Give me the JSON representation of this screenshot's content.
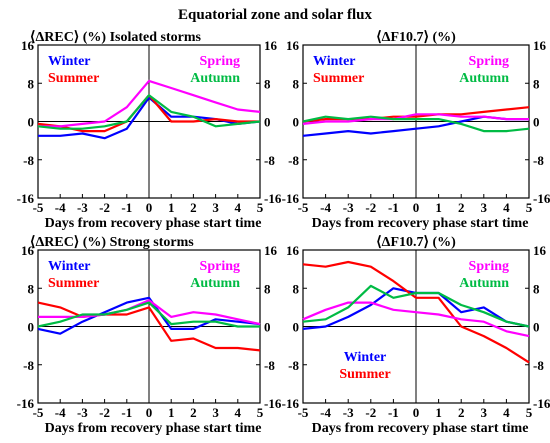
{
  "figure": {
    "title": "Equatorial zone and solar flux"
  },
  "colors": {
    "Winter": "#0000ff",
    "Summer": "#ff0000",
    "Spring": "#ff00ff",
    "Autumn": "#00bb44",
    "axis": "#000000"
  },
  "chart_data": [
    {
      "type": "line",
      "title": "⟨ΔREC⟩ (%) Isolated storms",
      "xlabel": "Days from recovery phase start time",
      "ylabel": "",
      "xlim": [
        -5,
        5
      ],
      "ylim": [
        -16,
        16
      ],
      "xticks": [
        -5,
        -4,
        -3,
        -2,
        -1,
        0,
        1,
        2,
        3,
        4,
        5
      ],
      "yticks": [
        -16,
        -8,
        0,
        8,
        16
      ],
      "legend": [
        {
          "label": "Winter",
          "color": "#0000ff",
          "placement": "top-left",
          "row": 1
        },
        {
          "label": "Summer",
          "color": "#ff0000",
          "placement": "top-left",
          "row": 2
        },
        {
          "label": "Spring",
          "color": "#ff00ff",
          "placement": "top-right",
          "row": 1
        },
        {
          "label": "Autumn",
          "color": "#00bb44",
          "placement": "top-right",
          "row": 2
        }
      ],
      "x": [
        -5,
        -4,
        -3,
        -2,
        -1,
        0,
        1,
        2,
        3,
        4,
        5
      ],
      "series": [
        {
          "name": "Winter",
          "color": "#0000ff",
          "values": [
            -3,
            -3,
            -2.5,
            -3.5,
            -1.5,
            5,
            1,
            1,
            0.5,
            -0.5,
            0
          ]
        },
        {
          "name": "Summer",
          "color": "#ff0000",
          "values": [
            -0.5,
            -1,
            -2,
            -2,
            0,
            5.5,
            0,
            0,
            0.5,
            0,
            0
          ]
        },
        {
          "name": "Spring",
          "color": "#ff00ff",
          "values": [
            -1,
            -1,
            -0.5,
            0,
            3,
            8.5,
            7,
            5.5,
            4,
            2.5,
            2
          ]
        },
        {
          "name": "Autumn",
          "color": "#00bb44",
          "values": [
            -1,
            -1.5,
            -1.5,
            -1,
            0,
            5.5,
            2,
            1,
            -1,
            -0.5,
            0
          ]
        }
      ]
    },
    {
      "type": "line",
      "title": "⟨ΔF10.7⟩ (%)",
      "xlabel": "Days from recovery phase start time",
      "ylabel": "",
      "xlim": [
        -5,
        5
      ],
      "ylim": [
        -16,
        16
      ],
      "xticks": [
        -5,
        -4,
        -3,
        -2,
        -1,
        0,
        1,
        2,
        3,
        4,
        5
      ],
      "yticks": [
        -16,
        -8,
        0,
        8,
        16
      ],
      "legend": [
        {
          "label": "Winter",
          "color": "#0000ff",
          "placement": "top-left",
          "row": 1
        },
        {
          "label": "Summer",
          "color": "#ff0000",
          "placement": "top-left",
          "row": 2
        },
        {
          "label": "Spring",
          "color": "#ff00ff",
          "placement": "top-right",
          "row": 1
        },
        {
          "label": "Autumn",
          "color": "#00bb44",
          "placement": "top-right",
          "row": 2
        }
      ],
      "x": [
        -5,
        -4,
        -3,
        -2,
        -1,
        0,
        1,
        2,
        3,
        4,
        5
      ],
      "series": [
        {
          "name": "Winter",
          "color": "#0000ff",
          "values": [
            -3,
            -2.5,
            -2,
            -2.5,
            -2,
            -1.5,
            -1,
            0,
            1,
            0.5,
            0.5
          ]
        },
        {
          "name": "Summer",
          "color": "#ff0000",
          "values": [
            0,
            0.5,
            0.5,
            0.5,
            1,
            1,
            1.5,
            1.5,
            2,
            2.5,
            3
          ]
        },
        {
          "name": "Spring",
          "color": "#ff00ff",
          "values": [
            -0.5,
            0,
            0,
            0.5,
            0.5,
            1.5,
            1.5,
            1,
            1,
            0.5,
            0.5
          ]
        },
        {
          "name": "Autumn",
          "color": "#00bb44",
          "values": [
            0,
            1,
            0.5,
            1,
            0.5,
            0.5,
            0.5,
            -0.5,
            -2,
            -2,
            -1.5
          ]
        }
      ]
    },
    {
      "type": "line",
      "title": "⟨ΔREC⟩ (%) Strong storms",
      "xlabel": "Days from recovery phase start time",
      "ylabel": "",
      "xlim": [
        -5,
        5
      ],
      "ylim": [
        -16,
        16
      ],
      "xticks": [
        -5,
        -4,
        -3,
        -2,
        -1,
        0,
        1,
        2,
        3,
        4,
        5
      ],
      "yticks": [
        -16,
        -8,
        0,
        8,
        16
      ],
      "legend": [
        {
          "label": "Winter",
          "color": "#0000ff",
          "placement": "top-left",
          "row": 1
        },
        {
          "label": "Summer",
          "color": "#ff0000",
          "placement": "top-left",
          "row": 2
        },
        {
          "label": "Spring",
          "color": "#ff00ff",
          "placement": "top-right",
          "row": 1
        },
        {
          "label": "Autumn",
          "color": "#00bb44",
          "placement": "top-right",
          "row": 2
        }
      ],
      "x": [
        -5,
        -4,
        -3,
        -2,
        -1,
        0,
        1,
        2,
        3,
        4,
        5
      ],
      "series": [
        {
          "name": "Winter",
          "color": "#0000ff",
          "values": [
            -0.5,
            -1.5,
            1,
            3,
            5,
            6,
            -0.5,
            -0.5,
            1.5,
            1,
            0.5
          ]
        },
        {
          "name": "Summer",
          "color": "#ff0000",
          "values": [
            5,
            4,
            2,
            2.5,
            2.5,
            4,
            -3,
            -2.5,
            -4.5,
            -4.5,
            -5
          ]
        },
        {
          "name": "Spring",
          "color": "#ff00ff",
          "values": [
            2,
            2,
            2,
            2.5,
            3.5,
            5.5,
            2,
            3,
            2.5,
            1.5,
            0.5
          ]
        },
        {
          "name": "Autumn",
          "color": "#00bb44",
          "values": [
            0,
            1,
            2.5,
            2.5,
            3.5,
            5,
            0.5,
            1,
            1,
            0,
            0
          ]
        }
      ]
    },
    {
      "type": "line",
      "title": "⟨ΔF10.7⟩ (%)",
      "xlabel": "Days from recovery phase start time",
      "ylabel": "",
      "xlim": [
        -5,
        5
      ],
      "ylim": [
        -16,
        16
      ],
      "xticks": [
        -5,
        -4,
        -3,
        -2,
        -1,
        0,
        1,
        2,
        3,
        4,
        5
      ],
      "yticks": [
        -16,
        -8,
        0,
        8,
        16
      ],
      "legend": [
        {
          "label": "Spring",
          "color": "#ff00ff",
          "placement": "top-right",
          "row": 1
        },
        {
          "label": "Autumn",
          "color": "#00bb44",
          "placement": "top-right",
          "row": 2
        },
        {
          "label": "Winter",
          "color": "#0000ff",
          "placement": "bottom-left",
          "row": 1
        },
        {
          "label": "Summer",
          "color": "#ff0000",
          "placement": "bottom-left",
          "row": 2
        }
      ],
      "x": [
        -5,
        -4,
        -3,
        -2,
        -1,
        0,
        1,
        2,
        3,
        4,
        5
      ],
      "series": [
        {
          "name": "Winter",
          "color": "#0000ff",
          "values": [
            -0.5,
            0,
            2,
            4.5,
            8,
            7,
            7,
            3,
            4,
            1,
            0
          ]
        },
        {
          "name": "Summer",
          "color": "#ff0000",
          "values": [
            13,
            12.5,
            13.5,
            12.5,
            9.5,
            6,
            6,
            0,
            -2,
            -4.5,
            -7.5
          ]
        },
        {
          "name": "Spring",
          "color": "#ff00ff",
          "values": [
            1.5,
            3.5,
            5,
            5,
            3.5,
            3,
            2.5,
            1.5,
            1,
            -1,
            -2
          ]
        },
        {
          "name": "Autumn",
          "color": "#00bb44",
          "values": [
            1,
            1.5,
            4,
            8.5,
            6,
            7,
            7,
            4.5,
            3,
            1,
            0
          ]
        }
      ]
    }
  ]
}
